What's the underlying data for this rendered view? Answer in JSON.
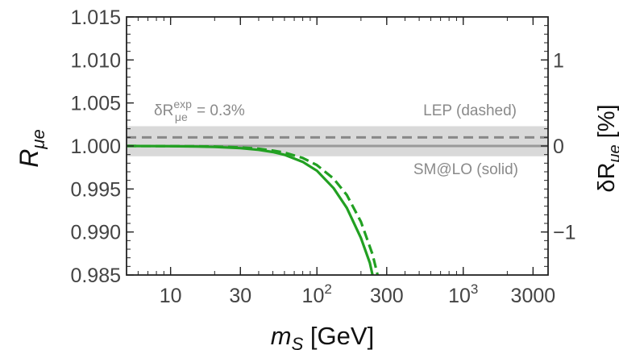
{
  "chart_data": {
    "type": "line",
    "x_scale": "log",
    "xlim": [
      5,
      3800
    ],
    "ylim": [
      0.985,
      1.015
    ],
    "y2lim": [
      -1.5,
      1.5
    ],
    "xlabel": {
      "main": "m",
      "sub": "S",
      "unit": " [GeV]"
    },
    "ylabel": {
      "main": "R",
      "sub": "μe"
    },
    "y2label": {
      "pre": "δR",
      "sub": "μe",
      "unit": " [%]"
    },
    "x_ticks": [
      {
        "value": 10,
        "label": "10"
      },
      {
        "value": 30,
        "label": "30"
      },
      {
        "value": 100,
        "base": "10",
        "exp": "2"
      },
      {
        "value": 300,
        "label": "300"
      },
      {
        "value": 1000,
        "base": "10",
        "exp": "3"
      },
      {
        "value": 3000,
        "label": "3000"
      }
    ],
    "y_ticks": [
      {
        "value": 1.015,
        "label": "1.015"
      },
      {
        "value": 1.01,
        "label": "1.010"
      },
      {
        "value": 1.005,
        "label": "1.005"
      },
      {
        "value": 1.0,
        "label": "1.000"
      },
      {
        "value": 0.995,
        "label": "0.995"
      },
      {
        "value": 0.99,
        "label": "0.990"
      },
      {
        "value": 0.985,
        "label": "0.985"
      }
    ],
    "y2_ticks": [
      {
        "value": 1,
        "label": "1"
      },
      {
        "value": 0,
        "label": "0"
      },
      {
        "value": -1,
        "label": "−1"
      }
    ],
    "bands": [
      {
        "name": "experimental uncertainty band",
        "y0": 0.9988,
        "y1": 1.0023,
        "color": "#d9d9d9"
      }
    ],
    "reference_lines": [
      {
        "name": "LEP",
        "y": 1.001,
        "style": "dashed",
        "color": "#888888"
      },
      {
        "name": "SM@LO",
        "y": 1.0,
        "style": "solid",
        "color": "#999999"
      }
    ],
    "series": [
      {
        "style": "solid",
        "color": "#22a022",
        "x": [
          5,
          8,
          10,
          15,
          20,
          30,
          40,
          50,
          60,
          80,
          100,
          130,
          160,
          200,
          230,
          240
        ],
        "y": [
          1.0,
          0.99998,
          0.99997,
          0.99993,
          0.99989,
          0.99975,
          0.99955,
          0.9993,
          0.99898,
          0.99815,
          0.99712,
          0.9951,
          0.9928,
          0.9893,
          0.9864,
          0.985
        ]
      },
      {
        "style": "dashed",
        "color": "#22a022",
        "x": [
          5,
          8,
          10,
          15,
          20,
          30,
          40,
          50,
          60,
          80,
          100,
          130,
          160,
          200,
          240,
          260
        ],
        "y": [
          1.0,
          0.99999,
          0.99998,
          0.99996,
          0.99993,
          0.99983,
          0.99967,
          0.99947,
          0.99923,
          0.9986,
          0.99778,
          0.9962,
          0.9943,
          0.9912,
          0.9874,
          0.985
        ]
      }
    ],
    "annotations": {
      "delta": {
        "pre": "δR",
        "sup": "exp",
        "sub": "μe",
        "value": " = 0.3%"
      },
      "lep": "LEP (dashed)",
      "sm": "SM@LO (solid)"
    }
  }
}
